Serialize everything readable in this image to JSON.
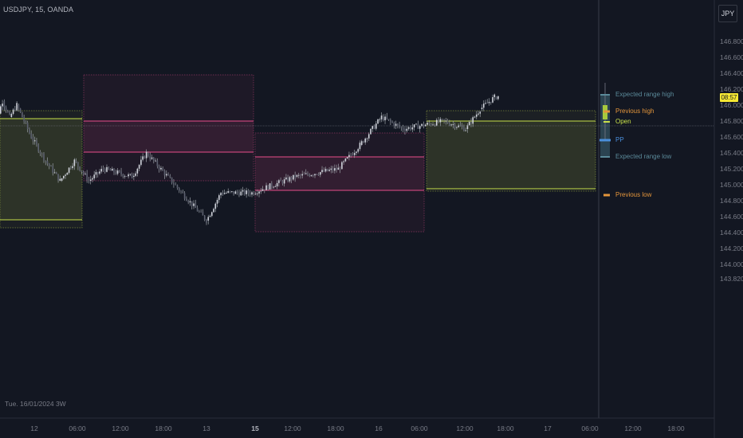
{
  "header": {
    "symbol": "USDJPY, 15, OANDA",
    "currency": "JPY"
  },
  "footer": {
    "date_label": "Tue. 16/01/2024 3W"
  },
  "price_axis": {
    "labels": [
      {
        "text": "146.800",
        "value": 146.8
      },
      {
        "text": "146.600",
        "value": 146.6
      },
      {
        "text": "146.400",
        "value": 146.4
      },
      {
        "text": "146.200",
        "value": 146.2
      },
      {
        "text": "146.000",
        "value": 146.0
      },
      {
        "text": "145.800",
        "value": 145.8
      },
      {
        "text": "145.600",
        "value": 145.6
      },
      {
        "text": "145.400",
        "value": 145.4
      },
      {
        "text": "145.200",
        "value": 145.2
      },
      {
        "text": "145.000",
        "value": 145.0
      },
      {
        "text": "144.800",
        "value": 144.8
      },
      {
        "text": "144.600",
        "value": 144.6
      },
      {
        "text": "144.400",
        "value": 144.4
      },
      {
        "text": "144.200",
        "value": 144.2
      },
      {
        "text": "144.000",
        "value": 144.0
      },
      {
        "text": "143.820",
        "value": 143.82
      }
    ],
    "current_label": "08:57",
    "current_value": 146.09
  },
  "time_axis": {
    "labels": [
      {
        "text": "12",
        "bold": false
      },
      {
        "text": "06:00",
        "bold": false
      },
      {
        "text": "12:00",
        "bold": false
      },
      {
        "text": "18:00",
        "bold": false
      },
      {
        "text": "13",
        "bold": false
      },
      {
        "text": "15",
        "bold": true
      },
      {
        "text": "12:00",
        "bold": false
      },
      {
        "text": "18:00",
        "bold": false
      },
      {
        "text": "16",
        "bold": false
      },
      {
        "text": "06:00",
        "bold": false
      },
      {
        "text": "12:00",
        "bold": false
      },
      {
        "text": "18:00",
        "bold": false
      },
      {
        "text": "17",
        "bold": false
      },
      {
        "text": "06:00",
        "bold": false
      },
      {
        "text": "12:00",
        "bold": false
      },
      {
        "text": "18:00",
        "bold": false
      }
    ]
  },
  "levels": [
    {
      "key": "expected_high",
      "label": "Expected range high",
      "color": "#5b8a9a",
      "value": 146.13
    },
    {
      "key": "prev_high",
      "label": "Previous high",
      "color": "#e3953b",
      "value": 145.92
    },
    {
      "key": "open",
      "label": "Open",
      "color": "#c8e04a",
      "value": 145.79
    },
    {
      "key": "pp",
      "label": "PP",
      "color": "#4a8fdc",
      "value": 145.56
    },
    {
      "key": "expected_low",
      "label": "Expected range low",
      "color": "#5b8a9a",
      "value": 145.35
    },
    {
      "key": "prev_low",
      "label": "Previous low",
      "color": "#e3953b",
      "value": 144.87
    }
  ],
  "colors": {
    "background": "#131722",
    "green_zone": "#c8e04a",
    "pink_zone": "#e84d8a",
    "candle": "#9aa0a6",
    "current_price_badge": "#f7e933"
  },
  "chart_data": {
    "type": "candlestick",
    "symbol": "USDJPY",
    "timeframe": "15",
    "source": "OANDA",
    "y_range": [
      143.82,
      146.85
    ],
    "zones": [
      {
        "color": "green",
        "days": "11-12 Jan",
        "outer": [
          144.46,
          145.93
        ],
        "inner": [
          144.56,
          145.83
        ]
      },
      {
        "color": "pink",
        "days": "12 Jan",
        "outer": [
          145.05,
          146.38
        ],
        "inner": [
          145.41,
          145.8
        ]
      },
      {
        "color": "pink",
        "days": "15 Jan",
        "outer": [
          144.41,
          145.65
        ],
        "inner": [
          144.93,
          145.35
        ]
      },
      {
        "color": "green",
        "days": "16 Jan",
        "outer": [
          144.92,
          145.93
        ],
        "inner": [
          144.95,
          145.8
        ]
      }
    ],
    "price_path": [
      {
        "t": "12 00:00",
        "p": 145.5
      },
      {
        "t": "12 02:00",
        "p": 146.05
      },
      {
        "t": "12 03:00",
        "p": 145.85
      },
      {
        "t": "12 04:00",
        "p": 146.0
      },
      {
        "t": "12 06:00",
        "p": 145.6
      },
      {
        "t": "12 08:00",
        "p": 145.3
      },
      {
        "t": "12 10:00",
        "p": 145.05
      },
      {
        "t": "12 12:00",
        "p": 145.3
      },
      {
        "t": "12 14:00",
        "p": 145.05
      },
      {
        "t": "12 16:00",
        "p": 145.2
      },
      {
        "t": "12 20:00",
        "p": 145.1
      },
      {
        "t": "12 22:00",
        "p": 145.4
      },
      {
        "t": "13 00:00",
        "p": 144.55
      },
      {
        "t": "13 02:00",
        "p": 144.9
      },
      {
        "t": "15 00:00",
        "p": 144.9
      },
      {
        "t": "15 06:00",
        "p": 145.1
      },
      {
        "t": "15 12:00",
        "p": 145.2
      },
      {
        "t": "15 15:00",
        "p": 145.5
      },
      {
        "t": "15 18:00",
        "p": 145.85
      },
      {
        "t": "15 21:00",
        "p": 145.7
      },
      {
        "t": "16 03:00",
        "p": 145.8
      },
      {
        "t": "16 06:00",
        "p": 145.7
      },
      {
        "t": "16 08:00",
        "p": 145.95
      },
      {
        "t": "16 10:00",
        "p": 146.1
      },
      {
        "t": "16 12:00",
        "p": 146.15
      },
      {
        "t": "16 14:00",
        "p": 146.1
      }
    ]
  }
}
